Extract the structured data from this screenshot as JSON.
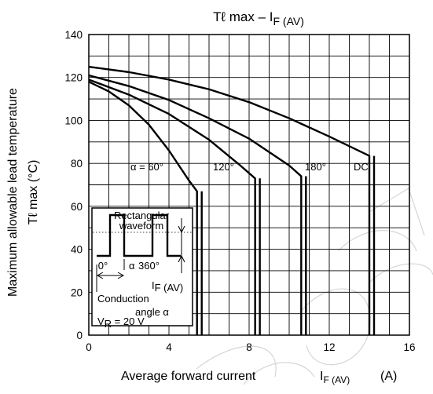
{
  "chart_data": {
    "type": "line",
    "title": "Tℓ max – I",
    "title_sub": "F (AV)",
    "xlabel": "Average forward current",
    "xlabel_symbol": "I",
    "xlabel_symbol_sub": "F (AV)",
    "xlabel_unit": "(A)",
    "ylabel_line1": "Maximum allowable lead temperature",
    "ylabel_line2": "Tℓ max    (°C)",
    "xlim": [
      0,
      16
    ],
    "ylim": [
      0,
      140
    ],
    "x_ticks": [
      "0",
      "4",
      "8",
      "12",
      "16"
    ],
    "y_ticks": [
      "0",
      "20",
      "40",
      "60",
      "80",
      "100",
      "120",
      "140"
    ],
    "grid": true,
    "series": [
      {
        "name": "α = 60°",
        "points": [
          [
            0,
            118
          ],
          [
            1,
            113.5
          ],
          [
            2,
            107
          ],
          [
            3,
            98
          ],
          [
            4,
            86
          ],
          [
            5,
            72
          ],
          [
            5.4,
            67
          ],
          [
            5.4,
            0
          ]
        ]
      },
      {
        "name": "120°",
        "points": [
          [
            0,
            119
          ],
          [
            2,
            112
          ],
          [
            4,
            103
          ],
          [
            6,
            91
          ],
          [
            7.5,
            79.5
          ],
          [
            8.3,
            73
          ],
          [
            8.3,
            0
          ]
        ]
      },
      {
        "name": "180°",
        "points": [
          [
            0,
            121
          ],
          [
            2,
            116
          ],
          [
            4,
            109.5
          ],
          [
            6,
            101
          ],
          [
            8,
            91.5
          ],
          [
            10,
            79
          ],
          [
            10.6,
            74
          ],
          [
            10.6,
            0
          ]
        ]
      },
      {
        "name": "DC",
        "points": [
          [
            0,
            125
          ],
          [
            2,
            122.5
          ],
          [
            4,
            119
          ],
          [
            6,
            114.5
          ],
          [
            8,
            108.5
          ],
          [
            10,
            101
          ],
          [
            12,
            92.5
          ],
          [
            14,
            83.5
          ],
          [
            14,
            0
          ]
        ]
      }
    ],
    "inset": {
      "waveform_line1": "Rectangular",
      "waveform_line2": "waveform",
      "angle_start": "0°",
      "alpha": "α",
      "angle_end": "360°",
      "current": "I",
      "current_sub": "F (AV)",
      "conduction_line1": "Conduction",
      "conduction_line2": "angle α",
      "voltage_symbol": "V",
      "voltage_sub": "R",
      "voltage_value": " = 20 V"
    }
  },
  "colors": {
    "line": "#000000",
    "grid": "#000000",
    "background": "#ffffff",
    "watermark": "#d6d6d6"
  }
}
